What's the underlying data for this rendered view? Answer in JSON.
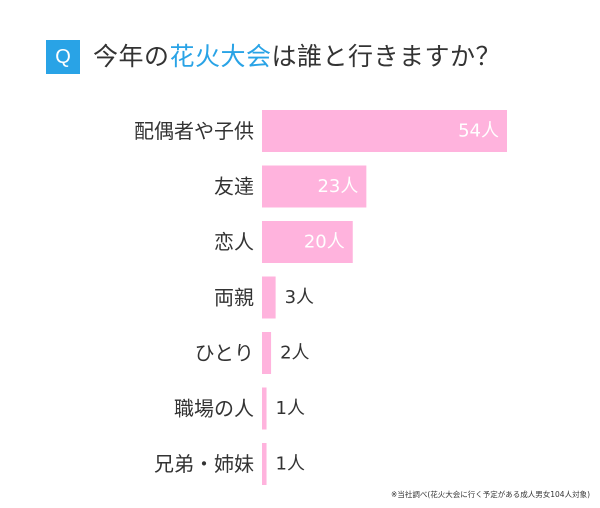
{
  "header": {
    "badge": "Q",
    "title_before": "今年の",
    "title_highlight": "花火大会",
    "title_after": "は誰と行きますか？"
  },
  "chart_data": {
    "type": "bar",
    "orientation": "horizontal",
    "categories": [
      "配偶者や子供",
      "友達",
      "恋人",
      "両親",
      "ひとり",
      "職場の人",
      "兄弟・姉妹"
    ],
    "values": [
      54,
      23,
      20,
      3,
      2,
      1,
      1
    ],
    "value_labels": [
      "54人",
      "23人",
      "20人",
      "3人",
      "2人",
      "1人",
      "1人"
    ],
    "unit": "人",
    "xlim": [
      0,
      54
    ],
    "grid": false,
    "legend": "none",
    "bar_color": "#ffb3dd",
    "label_inside_color": "#ffffff",
    "label_outside_color": "#333333"
  },
  "footnote": "※当社調べ(花火大会に行く予定がある成人男女104人対象)"
}
